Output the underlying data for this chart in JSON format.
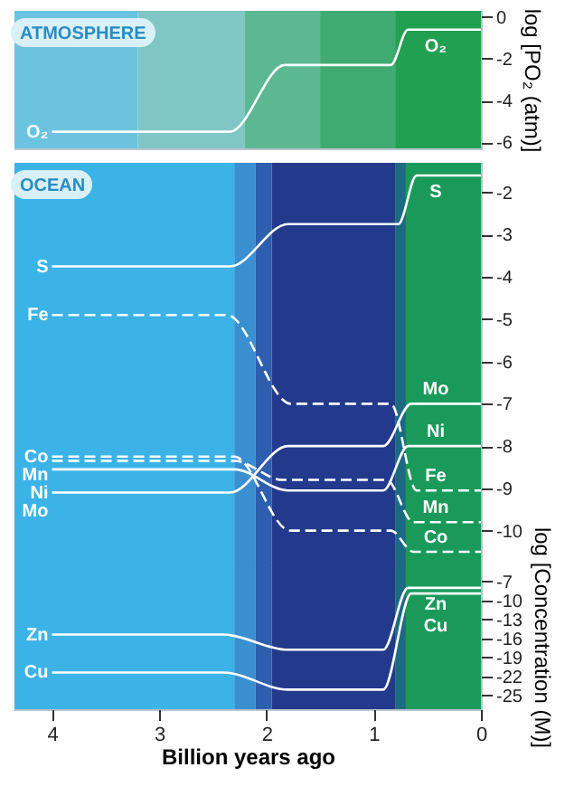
{
  "chart_data": [
    {
      "type": "line",
      "ylabel": "log [PO₂ (atm)]",
      "annotations": [
        "ATMOSPHERE"
      ],
      "xlim": [
        4.35,
        0
      ],
      "ylim": [
        -6.3,
        0.3
      ],
      "yticks": [
        0,
        -2,
        -4,
        -6
      ],
      "tick_labels": "y",
      "grid": false,
      "bands": [
        {
          "axis": "x",
          "from": 4.35,
          "to": 3.2,
          "color": "#6cc3e0"
        },
        {
          "axis": "x",
          "from": 3.2,
          "to": 2.2,
          "color": "#7fc6c4"
        },
        {
          "axis": "x",
          "from": 2.2,
          "to": 1.5,
          "color": "#5cb890"
        },
        {
          "axis": "x",
          "from": 1.5,
          "to": 0.8,
          "color": "#40ab70"
        },
        {
          "axis": "x",
          "from": 0.8,
          "to": 0,
          "color": "#22a052"
        }
      ],
      "series": [
        {
          "name": "O₂",
          "color": "#ffffff",
          "line_style": "solid",
          "x": [
            4,
            2.34,
            1.83,
            0.84,
            0.68,
            0
          ],
          "values": [
            -5.5,
            -5.5,
            -2.3,
            -2.3,
            -0.6,
            -0.6
          ]
        }
      ]
    },
    {
      "type": "line",
      "ylabel": "log [Concentration (M)]",
      "annotations": [
        "OCEAN"
      ],
      "xlim": [
        4.35,
        0
      ],
      "ylim": [
        -10.8,
        -1.3
      ],
      "yticks": [
        -2,
        -3,
        -4,
        -5,
        -6,
        -7,
        -8,
        -9,
        -10
      ],
      "tick_labels": "y",
      "grid": false,
      "bands": [
        {
          "axis": "x",
          "from": 4.35,
          "to": 2.3,
          "color": "#3cb3e6"
        },
        {
          "axis": "x",
          "from": 2.3,
          "to": 2.1,
          "color": "#3a8fd0"
        },
        {
          "axis": "x",
          "from": 2.1,
          "to": 1.95,
          "color": "#2d5fae"
        },
        {
          "axis": "x",
          "from": 1.95,
          "to": 0.8,
          "color": "#233a8c"
        },
        {
          "axis": "x",
          "from": 0.8,
          "to": 0.7,
          "color": "#1c6a80"
        },
        {
          "axis": "x",
          "from": 0.7,
          "to": 0,
          "color": "#1a9a5a"
        }
      ],
      "series": [
        {
          "name": "S",
          "color": "#ffffff",
          "line_style": "solid",
          "x": [
            4,
            2.34,
            1.8,
            0.77,
            0.6,
            0
          ],
          "values": [
            -3.75,
            -3.75,
            -2.75,
            -2.75,
            -1.6,
            -1.6
          ]
        },
        {
          "name": "Fe",
          "color": "#ffffff",
          "line_style": "dashed",
          "x": [
            4,
            2.37,
            1.77,
            0.84,
            0.6,
            0
          ],
          "values": [
            -4.9,
            -4.9,
            -7.0,
            -7.0,
            -9.05,
            -9.05
          ]
        },
        {
          "name": "Co",
          "color": "#ffffff",
          "line_style": "dashed",
          "x": [
            4,
            2.3,
            1.78,
            0.84,
            0.63,
            0
          ],
          "values": [
            -8.25,
            -8.25,
            -10.0,
            -10.0,
            -10.5,
            -10.5
          ]
        },
        {
          "name": "Mn",
          "color": "#ffffff",
          "line_style": "dashed",
          "x": [
            4,
            2.3,
            1.85,
            0.88,
            0.63,
            0
          ],
          "values": [
            -8.35,
            -8.35,
            -8.8,
            -8.8,
            -9.8,
            -9.8
          ]
        },
        {
          "name": "Ni",
          "color": "#ffffff",
          "line_style": "solid",
          "x": [
            4,
            2.3,
            1.8,
            0.91,
            0.68,
            0
          ],
          "values": [
            -8.55,
            -8.55,
            -9.05,
            -9.05,
            -8.0,
            -8.0
          ]
        },
        {
          "name": "Mo",
          "color": "#ffffff",
          "line_style": "solid",
          "x": [
            4,
            2.34,
            1.8,
            0.91,
            0.65,
            0
          ],
          "values": [
            -9.1,
            -9.1,
            -8.0,
            -8.0,
            -7.0,
            -7.0
          ]
        }
      ]
    },
    {
      "type": "line",
      "xlabel": "Billion years ago",
      "xlim": [
        4.35,
        0
      ],
      "xticks": [
        4,
        3,
        2,
        1,
        0
      ],
      "ylim": [
        -27.2,
        -4.3
      ],
      "yticks": [
        -7,
        -10,
        -13,
        -16,
        -19,
        -22,
        -25
      ],
      "grid": false,
      "bands": [
        {
          "axis": "x",
          "from": 4.35,
          "to": 2.3,
          "color": "#3cb3e6"
        },
        {
          "axis": "x",
          "from": 2.3,
          "to": 2.1,
          "color": "#3a8fd0"
        },
        {
          "axis": "x",
          "from": 2.1,
          "to": 1.95,
          "color": "#2d5fae"
        },
        {
          "axis": "x",
          "from": 1.95,
          "to": 0.8,
          "color": "#233a8c"
        },
        {
          "axis": "x",
          "from": 0.8,
          "to": 0.7,
          "color": "#1c6a80"
        },
        {
          "axis": "x",
          "from": 0.7,
          "to": 0,
          "color": "#1a9a5a"
        }
      ],
      "series": [
        {
          "name": "Zn",
          "color": "#ffffff",
          "line_style": "solid",
          "x": [
            4,
            2.4,
            1.8,
            0.91,
            0.68,
            0
          ],
          "values": [
            -15.4,
            -15.4,
            -17.8,
            -17.8,
            -8.0,
            -8.0
          ]
        },
        {
          "name": "Cu",
          "color": "#ffffff",
          "line_style": "solid",
          "x": [
            4,
            2.4,
            1.8,
            0.91,
            0.65,
            0
          ],
          "values": [
            -21.4,
            -21.4,
            -24.1,
            -24.1,
            -8.9,
            -8.9
          ]
        }
      ]
    }
  ]
}
